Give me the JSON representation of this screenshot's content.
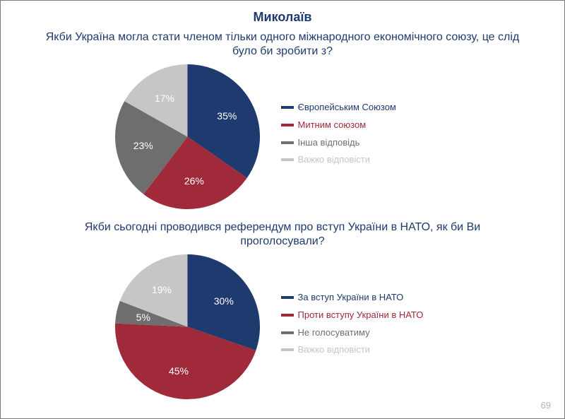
{
  "page": {
    "title": "Миколаїв",
    "title_color": "#1f3a6e",
    "question_color": "#1f3a6e",
    "page_number": "69"
  },
  "chart1": {
    "type": "pie",
    "question": "Якби Україна могла стати членом тільки одного міжнародного економічного союзу, це слід було би зробити з?",
    "slices": [
      {
        "label": "Європейським Союзом",
        "value": 35,
        "pct": "35%",
        "color": "#1f3a6e"
      },
      {
        "label": "Митним союзом",
        "value": 26,
        "pct": "26%",
        "color": "#a02a3a"
      },
      {
        "label": "Інша відповідь",
        "value": 23,
        "pct": "23%",
        "color": "#6e6e6e"
      },
      {
        "label": "Важко відповісти",
        "value": 17,
        "pct": "17%",
        "color": "#c6c6c6"
      }
    ],
    "legend_colors": [
      "#1f3a6e",
      "#a02a3a",
      "#6e6e6e",
      "#c6c6c6"
    ],
    "label_color": "#ffffff",
    "start_angle_deg": 0
  },
  "chart2": {
    "type": "pie",
    "question": "Якби сьогодні проводився референдум про вступ України в НАТО, як би Ви проголосували?",
    "slices": [
      {
        "label": "За вступ України в НАТО",
        "value": 30,
        "pct": "30%",
        "color": "#1f3a6e"
      },
      {
        "label": "Проти вступу України в НАТО",
        "value": 45,
        "pct": "45%",
        "color": "#a02a3a"
      },
      {
        "label": "Не голосуватиму",
        "value": 5,
        "pct": "5%",
        "color": "#6e6e6e"
      },
      {
        "label": "Важко відповісти",
        "value": 19,
        "pct": "19%",
        "color": "#c6c6c6"
      }
    ],
    "legend_colors": [
      "#1f3a6e",
      "#a02a3a",
      "#6e6e6e",
      "#c6c6c6"
    ],
    "label_color": "#ffffff",
    "start_angle_deg": 0
  }
}
